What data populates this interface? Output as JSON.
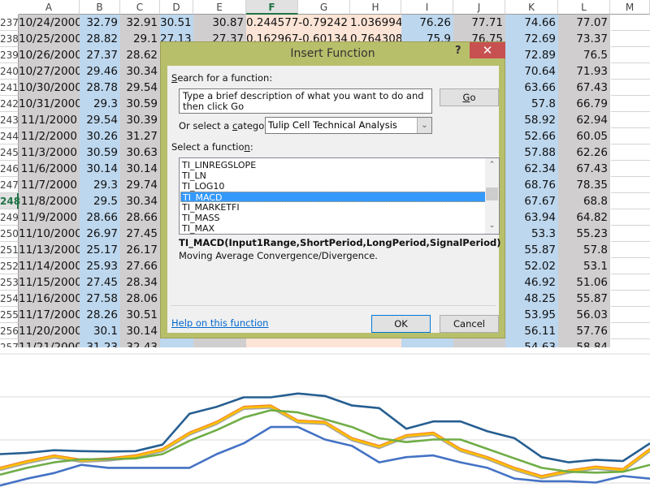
{
  "spreadsheet": {
    "columns": [
      "A",
      "B",
      "C",
      "D",
      "E",
      "F",
      "G",
      "H",
      "I",
      "J",
      "K",
      "L",
      "M"
    ],
    "selected_column": "F",
    "selected_row": "248",
    "column_fills": {
      "A": "#d0cece",
      "B": "#bdd7ee",
      "C": "#d0cece",
      "D": "#bdd7ee",
      "E": "#d0cece",
      "F": "#fce4d6",
      "G": "#fce4d6",
      "H": "#fce4d6",
      "I": "#bdd7ee",
      "J": "#d0cece",
      "K": "#bdd7ee",
      "L": "#d0cece"
    },
    "rows": [
      {
        "num": "237",
        "A": "10/24/2000",
        "B": "32.79",
        "C": "32.91",
        "D": "30.51",
        "E": "30.87",
        "F": "0.244577",
        "G": "-0.79242",
        "H": "1.036994",
        "I": "76.26",
        "J": "77.71",
        "K": "74.66",
        "L": "77.07"
      },
      {
        "num": "238",
        "A": "10/25/2000",
        "B": "28.82",
        "C": "29.1",
        "D": "27.13",
        "E": "27.37",
        "F": "0.162967",
        "G": "-0.60134",
        "H": "0.764308",
        "I": "75.9",
        "J": "76.75",
        "K": "72.69",
        "L": "73.37"
      },
      {
        "num": "239",
        "A": "10/26/2000",
        "B": "27.37",
        "C": "28.62",
        "K": "72.89",
        "L": "76.5"
      },
      {
        "num": "240",
        "A": "10/27/2000",
        "B": "29.46",
        "C": "30.34",
        "K": "70.64",
        "L": "71.93"
      },
      {
        "num": "241",
        "A": "10/30/2000",
        "B": "28.78",
        "C": "29.54",
        "K": "63.66",
        "L": "67.43"
      },
      {
        "num": "242",
        "A": "10/31/2000",
        "B": "29.3",
        "C": "30.59",
        "K": "57.8",
        "L": "66.79"
      },
      {
        "num": "243",
        "A": "11/1/2000",
        "B": "29.54",
        "C": "30.39",
        "K": "58.92",
        "L": "62.94"
      },
      {
        "num": "244",
        "A": "11/2/2000",
        "B": "30.26",
        "C": "31.27",
        "K": "52.66",
        "L": "60.05"
      },
      {
        "num": "245",
        "A": "11/3/2000",
        "B": "30.59",
        "C": "30.63",
        "K": "57.88",
        "L": "62.26"
      },
      {
        "num": "246",
        "A": "11/6/2000",
        "B": "30.14",
        "C": "30.14",
        "K": "62.34",
        "L": "67.43"
      },
      {
        "num": "247",
        "A": "11/7/2000",
        "B": "29.3",
        "C": "29.74",
        "K": "68.76",
        "L": "78.35"
      },
      {
        "num": "248",
        "A": "11/8/2000",
        "B": "29.5",
        "C": "30.34",
        "K": "67.67",
        "L": "68.8"
      },
      {
        "num": "249",
        "A": "11/9/2000",
        "B": "28.66",
        "C": "28.66",
        "K": "63.94",
        "L": "64.82"
      },
      {
        "num": "250",
        "A": "11/10/2000",
        "B": "26.97",
        "C": "27.45",
        "K": "53.3",
        "L": "55.23"
      },
      {
        "num": "251",
        "A": "11/13/2000",
        "B": "25.17",
        "C": "26.17",
        "K": "55.87",
        "L": "57.8"
      },
      {
        "num": "252",
        "A": "11/14/2000",
        "B": "25.93",
        "C": "27.66",
        "K": "52.02",
        "L": "53.1"
      },
      {
        "num": "253",
        "A": "11/15/2000",
        "B": "27.45",
        "C": "28.34",
        "K": "46.92",
        "L": "51.06"
      },
      {
        "num": "254",
        "A": "11/16/2000",
        "B": "27.58",
        "C": "28.06",
        "K": "48.25",
        "L": "55.87"
      },
      {
        "num": "255",
        "A": "11/17/2000",
        "B": "28.26",
        "C": "30.51",
        "K": "53.95",
        "L": "56.03"
      },
      {
        "num": "256",
        "A": "11/20/2000",
        "B": "30.1",
        "C": "30.14",
        "K": "56.11",
        "L": "57.76"
      },
      {
        "num": "257",
        "A": "11/21/2000",
        "B": "31.23",
        "C": "32.43",
        "K": "54.63",
        "L": "58.84"
      }
    ]
  },
  "dialog": {
    "title": "Insert Function",
    "help_glyph": "?",
    "close_glyph": "✕",
    "close_color": "#c75050",
    "frame_color": "#b8bf6b",
    "search_label_u": "S",
    "search_label_rest": "earch for a function:",
    "search_value": "Type a brief description of what you want to do and then click Go",
    "go_u": "G",
    "go_rest": "o",
    "category_label_pre": "Or select a ",
    "category_label_u": "c",
    "category_label_post": "ategory:",
    "category_value": "Tulip Cell Technical Analysis",
    "select_label_pre": "Select a functio",
    "select_label_u": "n",
    "select_label_post": ":",
    "functions": [
      "TI_LINREGSLOPE",
      "TI_LN",
      "TI_LOG10",
      "TI_MACD",
      "TI_MARKETFI",
      "TI_MASS",
      "TI_MAX"
    ],
    "selected_function": "TI_MACD",
    "signature": "TI_MACD(Input1Range,ShortPeriod,LongPeriod,SignalPeriod)",
    "description": "Moving Average Convergence/Divergence.",
    "help_link": "Help on this function",
    "ok_label": "OK",
    "cancel_label": "Cancel"
  },
  "chart_data": {
    "type": "line",
    "grid": true,
    "ylim": [
      0,
      3
    ],
    "legend": "none",
    "series": [
      {
        "color": "#255e91",
        "values": [
          0.67,
          0.7,
          0.76,
          0.74,
          0.73,
          0.74,
          0.89,
          1.61,
          1.77,
          1.99,
          1.99,
          2.08,
          2.02,
          1.8,
          1.74,
          1.26,
          1.43,
          1.43,
          1.2,
          1.04,
          0.6,
          0.48,
          0.54,
          0.51,
          0.92
        ]
      },
      {
        "color": "#4472c4",
        "values": [
          -0.06,
          0.1,
          0.23,
          0.42,
          0.35,
          0.35,
          0.35,
          0.35,
          0.67,
          0.92,
          1.3,
          1.3,
          1.01,
          0.86,
          0.48,
          0.6,
          0.64,
          0.48,
          0.35,
          0.1,
          0.04,
          0.04,
          0.01,
          0.16,
          0.1
        ]
      },
      {
        "color": "#a5a5a5",
        "values": [
          0.3,
          0.46,
          0.59,
          0.49,
          0.52,
          0.59,
          0.74,
          1.12,
          1.37,
          1.72,
          1.75,
          1.4,
          1.37,
          0.99,
          0.81,
          1.06,
          1.12,
          0.74,
          0.55,
          0.3,
          0.11,
          0.24,
          0.33,
          0.27,
          0.74
        ]
      },
      {
        "color": "#ed7d31",
        "values": [
          0.35,
          0.51,
          0.64,
          0.54,
          0.57,
          0.64,
          0.79,
          1.17,
          1.42,
          1.77,
          1.8,
          1.45,
          1.42,
          1.04,
          0.86,
          1.11,
          1.17,
          0.79,
          0.6,
          0.35,
          0.16,
          0.29,
          0.38,
          0.32,
          0.79
        ]
      },
      {
        "color": "#ffc000",
        "values": [
          0.33,
          0.49,
          0.62,
          0.52,
          0.55,
          0.62,
          0.77,
          1.15,
          1.4,
          1.75,
          1.78,
          1.43,
          1.4,
          1.02,
          0.84,
          1.09,
          1.15,
          0.77,
          0.58,
          0.33,
          0.14,
          0.27,
          0.36,
          0.3,
          0.77
        ]
      },
      {
        "color": "#70ad47",
        "values": [
          0.19,
          0.35,
          0.48,
          0.55,
          0.55,
          0.57,
          0.67,
          0.98,
          1.23,
          1.52,
          1.69,
          1.64,
          1.48,
          1.3,
          1.04,
          0.95,
          1.01,
          1.01,
          0.79,
          0.57,
          0.35,
          0.26,
          0.24,
          0.26,
          0.42
        ]
      }
    ]
  }
}
